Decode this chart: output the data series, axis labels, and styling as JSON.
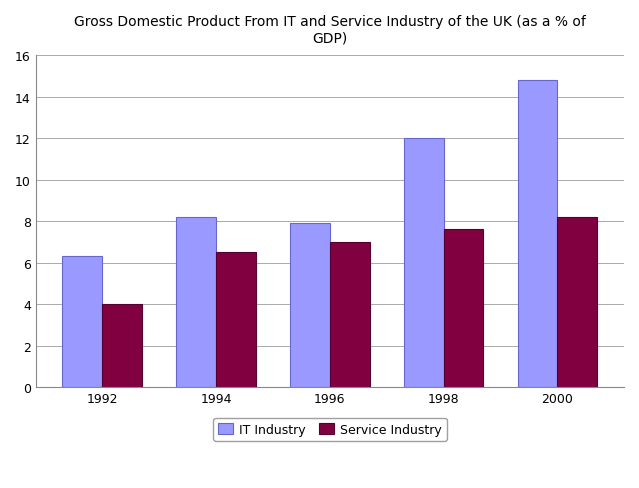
{
  "title": "Gross Domestic Product From IT and Service Industry of the UK (as a % of\nGDP)",
  "years": [
    "1992",
    "1994",
    "1996",
    "1998",
    "2000"
  ],
  "it_industry": [
    6.3,
    8.2,
    7.9,
    12.0,
    14.8
  ],
  "service_industry": [
    4.0,
    6.5,
    7.0,
    7.6,
    8.2
  ],
  "it_color": "#9999ff",
  "service_color": "#800040",
  "bar_width": 0.35,
  "ylim": [
    0,
    16
  ],
  "yticks": [
    0,
    2,
    4,
    6,
    8,
    10,
    12,
    14,
    16
  ],
  "legend_labels": [
    "IT Industry",
    "Service Industry"
  ],
  "background_color": "#ffffff",
  "grid_color": "#aaaaaa",
  "title_fontsize": 10
}
